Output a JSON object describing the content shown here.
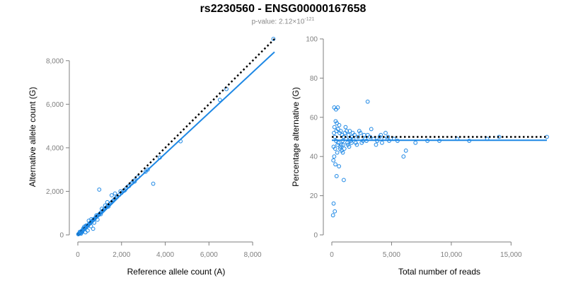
{
  "title": "rs2230560 - ENSG00000167658",
  "subtitle": {
    "prefix": "p-value: 2.12×10",
    "exponent": "-121"
  },
  "colors": {
    "points": "#1e88e5",
    "fit_line": "#1e88e5",
    "reference_line": "#000000",
    "axis": "#7f7f7f"
  },
  "chart_data": [
    {
      "type": "scatter",
      "xlabel": "Reference allele count (A)",
      "ylabel": "Alternative allele count (G)",
      "xlim": [
        0,
        9000
      ],
      "ylim": [
        0,
        9000
      ],
      "xticks": [
        0,
        2000,
        4000,
        6000,
        8000
      ],
      "yticks": [
        0,
        2000,
        4000,
        6000,
        8000
      ],
      "xtick_labels": [
        "0",
        "2,000",
        "4,000",
        "6,000",
        "8,000"
      ],
      "ytick_labels": [
        "0",
        "2,000",
        "4,000",
        "6,000",
        "8,000"
      ],
      "grid": false,
      "reference_line": {
        "style": "dotted",
        "points": [
          [
            0,
            0
          ],
          [
            9000,
            9000
          ]
        ]
      },
      "fit_line": {
        "style": "solid",
        "points": [
          [
            0,
            0
          ],
          [
            9000,
            8400
          ]
        ]
      },
      "points": [
        [
          20,
          30
        ],
        [
          40,
          50
        ],
        [
          60,
          55
        ],
        [
          80,
          90
        ],
        [
          100,
          70
        ],
        [
          120,
          110
        ],
        [
          150,
          140
        ],
        [
          170,
          160
        ],
        [
          190,
          200
        ],
        [
          210,
          180
        ],
        [
          230,
          220
        ],
        [
          250,
          260
        ],
        [
          280,
          250
        ],
        [
          300,
          290
        ],
        [
          320,
          300
        ],
        [
          350,
          330
        ],
        [
          380,
          360
        ],
        [
          400,
          420
        ],
        [
          430,
          400
        ],
        [
          460,
          440
        ],
        [
          490,
          470
        ],
        [
          520,
          500
        ],
        [
          550,
          540
        ],
        [
          580,
          560
        ],
        [
          610,
          600
        ],
        [
          640,
          620
        ],
        [
          670,
          650
        ],
        [
          700,
          690
        ],
        [
          730,
          710
        ],
        [
          760,
          740
        ],
        [
          800,
          780
        ],
        [
          840,
          820
        ],
        [
          880,
          860
        ],
        [
          920,
          890
        ],
        [
          960,
          930
        ],
        [
          1000,
          970
        ],
        [
          1050,
          1020
        ],
        [
          1100,
          1060
        ],
        [
          1150,
          1110
        ],
        [
          1200,
          1160
        ],
        [
          1250,
          1210
        ],
        [
          1300,
          1260
        ],
        [
          1350,
          1300
        ],
        [
          1400,
          1360
        ],
        [
          1450,
          1400
        ],
        [
          1500,
          1450
        ],
        [
          1550,
          1500
        ],
        [
          1600,
          1550
        ],
        [
          1650,
          1600
        ],
        [
          1700,
          1650
        ],
        [
          1750,
          1700
        ],
        [
          1800,
          1750
        ],
        [
          1900,
          1840
        ],
        [
          2000,
          1930
        ],
        [
          2100,
          2020
        ],
        [
          2200,
          2120
        ],
        [
          2300,
          2220
        ],
        [
          2450,
          2360
        ],
        [
          2600,
          2500
        ],
        [
          2750,
          2650
        ],
        [
          3100,
          2900
        ],
        [
          3200,
          3000
        ],
        [
          3750,
          3550
        ],
        [
          4700,
          4300
        ],
        [
          6500,
          6200
        ],
        [
          6800,
          6700
        ],
        [
          8950,
          9000
        ],
        [
          980,
          2080
        ],
        [
          1700,
          1900
        ],
        [
          1550,
          1820
        ],
        [
          1350,
          1500
        ],
        [
          3450,
          2350
        ],
        [
          2600,
          2450
        ],
        [
          700,
          280
        ],
        [
          450,
          200
        ],
        [
          300,
          380
        ],
        [
          150,
          60
        ],
        [
          350,
          120
        ],
        [
          500,
          650
        ],
        [
          600,
          400
        ],
        [
          900,
          700
        ],
        [
          1100,
          1200
        ],
        [
          1250,
          1350
        ],
        [
          1400,
          1300
        ],
        [
          1050,
          950
        ],
        [
          850,
          900
        ],
        [
          2150,
          2050
        ],
        [
          2350,
          2250
        ],
        [
          2500,
          2400
        ],
        [
          1950,
          2000
        ],
        [
          750,
          560
        ],
        [
          620,
          720
        ],
        [
          380,
          430
        ],
        [
          260,
          310
        ],
        [
          180,
          120
        ],
        [
          90,
          140
        ]
      ]
    },
    {
      "type": "scatter",
      "xlabel": "Total number of reads",
      "ylabel": "Percentage alternative (G)",
      "xlim": [
        0,
        18000
      ],
      "ylim": [
        0,
        100
      ],
      "xticks": [
        0,
        5000,
        10000,
        15000
      ],
      "yticks": [
        0,
        20,
        40,
        60,
        80,
        100
      ],
      "xtick_labels": [
        "0",
        "5,000",
        "10,000",
        "15,000"
      ],
      "ytick_labels": [
        "0",
        "20",
        "40",
        "60",
        "80",
        "100"
      ],
      "grid": false,
      "reference_line": {
        "style": "dotted",
        "points": [
          [
            0,
            50
          ],
          [
            18000,
            50
          ]
        ]
      },
      "fit_line": {
        "style": "solid",
        "points": [
          [
            0,
            48.3
          ],
          [
            18000,
            48.3
          ]
        ]
      },
      "points": [
        [
          100,
          10
        ],
        [
          150,
          16
        ],
        [
          250,
          12
        ],
        [
          200,
          65
        ],
        [
          350,
          64
        ],
        [
          500,
          65
        ],
        [
          3000,
          68
        ],
        [
          1000,
          28
        ],
        [
          400,
          30
        ],
        [
          600,
          35
        ],
        [
          300,
          36
        ],
        [
          200,
          40
        ],
        [
          450,
          42
        ],
        [
          700,
          44
        ],
        [
          800,
          46
        ],
        [
          900,
          48
        ],
        [
          1000,
          50
        ],
        [
          1100,
          52
        ],
        [
          1200,
          49
        ],
        [
          1300,
          47
        ],
        [
          1400,
          51
        ],
        [
          1500,
          53
        ],
        [
          1600,
          48
        ],
        [
          1700,
          50
        ],
        [
          1800,
          49
        ],
        [
          1900,
          51
        ],
        [
          2000,
          47
        ],
        [
          2200,
          50
        ],
        [
          2400,
          52
        ],
        [
          2600,
          48
        ],
        [
          2800,
          49
        ],
        [
          3000,
          51
        ],
        [
          3200,
          50
        ],
        [
          3500,
          49
        ],
        [
          3800,
          48
        ],
        [
          4000,
          50
        ],
        [
          4200,
          47
        ],
        [
          4500,
          52
        ],
        [
          4800,
          48
        ],
        [
          5200,
          49
        ],
        [
          5500,
          48
        ],
        [
          6000,
          40
        ],
        [
          6200,
          43
        ],
        [
          7000,
          47
        ],
        [
          8000,
          48
        ],
        [
          9000,
          48
        ],
        [
          10500,
          49
        ],
        [
          11500,
          48
        ],
        [
          13000,
          49
        ],
        [
          14000,
          50
        ],
        [
          18000,
          50
        ],
        [
          150,
          45
        ],
        [
          220,
          55
        ],
        [
          320,
          58
        ],
        [
          420,
          57
        ],
        [
          520,
          54
        ],
        [
          620,
          56
        ],
        [
          720,
          45
        ],
        [
          820,
          43
        ],
        [
          920,
          42
        ],
        [
          250,
          50
        ],
        [
          350,
          48
        ],
        [
          550,
          47
        ],
        [
          650,
          52
        ],
        [
          750,
          53
        ],
        [
          850,
          51
        ],
        [
          950,
          46
        ],
        [
          1050,
          44
        ],
        [
          1150,
          55
        ],
        [
          1250,
          53
        ],
        [
          1350,
          46
        ],
        [
          1450,
          45
        ],
        [
          1550,
          49
        ],
        [
          1650,
          47
        ],
        [
          1750,
          52
        ],
        [
          2100,
          46
        ],
        [
          2300,
          53
        ],
        [
          2500,
          47
        ],
        [
          2700,
          51
        ],
        [
          2900,
          48
        ],
        [
          3300,
          54
        ],
        [
          3700,
          46
        ],
        [
          4100,
          51
        ],
        [
          4400,
          49
        ],
        [
          4700,
          50
        ],
        [
          130,
          38
        ],
        [
          180,
          52
        ],
        [
          280,
          44
        ],
        [
          380,
          53
        ],
        [
          480,
          46
        ]
      ]
    }
  ]
}
